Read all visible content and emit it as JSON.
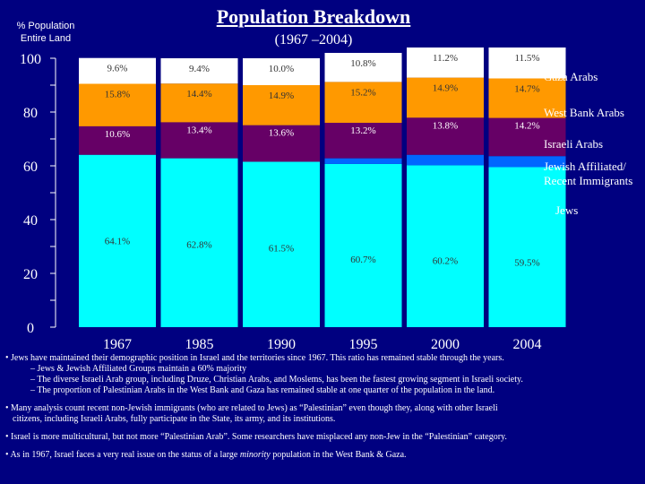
{
  "header": {
    "y_axis_label_line1": "% Population",
    "y_axis_label_line2": "Entire Land",
    "title": "Population Breakdown",
    "subtitle": "(1967 –2004)"
  },
  "colors": {
    "background": "#000080",
    "jews": "#00FFFF",
    "jewish_affiliated": "#0066FF",
    "israeli_arabs": "#660066",
    "west_bank_arabs": "#FF9900",
    "gaza_arabs": "#FFFFFF",
    "label_text_dark": "#333333",
    "label_text_light": "#FFFFFF"
  },
  "chart_data": {
    "type": "bar",
    "stacked": true,
    "title": "Population Breakdown",
    "subtitle": "(1967 –2004)",
    "ylabel": "% Population Entire Land",
    "ylim": [
      0,
      100
    ],
    "yticks": [
      0,
      20,
      40,
      60,
      80,
      100
    ],
    "categories": [
      "1967",
      "1985",
      "1990",
      "1995",
      "2000",
      "2004"
    ],
    "series": [
      {
        "name": "Jews",
        "values": [
          64.1,
          62.8,
          61.5,
          60.7,
          60.2,
          59.5
        ],
        "labels": [
          "64.1%",
          "62.8%",
          "61.5%",
          "60.7%",
          "60.2%",
          "59.5%"
        ],
        "color_key": "jews"
      },
      {
        "name": "Jewish Affiliated/ Recent Immigrants",
        "values": [
          0,
          0,
          0,
          2.1,
          3.9,
          4.1
        ],
        "labels": [
          "",
          "",
          "",
          "",
          "",
          ""
        ],
        "color_key": "jewish_affiliated"
      },
      {
        "name": "Israeli Arabs",
        "values": [
          10.6,
          13.4,
          13.6,
          13.2,
          13.8,
          14.2
        ],
        "labels": [
          "10.6%",
          "13.4%",
          "13.6%",
          "13.2%",
          "13.8%",
          "14.2%"
        ],
        "color_key": "israeli_arabs"
      },
      {
        "name": "West Bank Arabs",
        "values": [
          15.8,
          14.4,
          14.9,
          15.2,
          14.9,
          14.7
        ],
        "labels": [
          "15.8%",
          "14.4%",
          "14.9%",
          "15.2%",
          "14.9%",
          "14.7%"
        ],
        "color_key": "west_bank_arabs"
      },
      {
        "name": "Gaza Arabs",
        "values": [
          9.6,
          9.4,
          10.0,
          10.8,
          11.2,
          11.5
        ],
        "labels": [
          "9.6%",
          "9.4%",
          "10.0%",
          "10.8%",
          "11.2%",
          "11.5%"
        ],
        "color_key": "gaza_arabs"
      }
    ],
    "legend": [
      "Gaza Arabs",
      "West Bank Arabs",
      "Israeli Arabs",
      "Jewish Affiliated/ Recent Immigrants",
      "Jews"
    ],
    "legend_position": "right"
  },
  "notes": {
    "b1": "• Jews have maintained their demographic position in Israel and the territories since 1967.  This ratio has remained stable through the years.",
    "b1a": "– Jews  & Jewish Affiliated Groups maintain a 60% majority",
    "b1b": "– The diverse Israeli Arab group, including Druze, Christian Arabs, and Moslems, has been the fastest growing segment in Israeli society.",
    "b1c": "– The proportion of Palestinian Arabs in the West Bank and Gaza has remained stable at one quarter of the population in the land.",
    "b2": "• Many analysis count recent non-Jewish immigrants (who are related to Jews) as “Palestinian” even though they, along with other Israeli",
    "b2b": "citizens, including Israeli Arabs, fully participate in the State, its army, and its institutions.",
    "b3": "• Israel is more multicultural, but not more “Palestinian Arab”.  Some researchers have misplaced any non-Jew in the “Palestinian” category.",
    "b4_pre": "• As in 1967, Israel faces a very real issue on the status of a large ",
    "b4_em": "minority",
    "b4_post": " population in the West Bank & Gaza."
  }
}
